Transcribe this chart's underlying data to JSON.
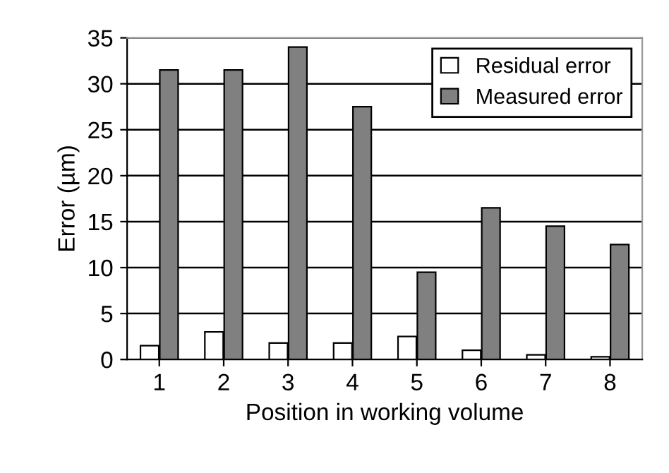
{
  "chart_data": {
    "type": "bar",
    "xlabel": "Position in working volume",
    "ylabel": "Error (µm)",
    "categories": [
      "1",
      "2",
      "3",
      "4",
      "5",
      "6",
      "7",
      "8"
    ],
    "series": [
      {
        "name": "Residual error",
        "color": "#ffffff",
        "values": [
          1.5,
          3,
          1.8,
          1.8,
          2.5,
          1,
          0.5,
          0.3
        ]
      },
      {
        "name": "Measured error",
        "color": "#808080",
        "values": [
          31.5,
          31.5,
          34,
          27.5,
          9.5,
          16.5,
          14.5,
          12.5
        ]
      }
    ],
    "ylim": [
      0,
      35
    ],
    "yticks": [
      0,
      5,
      10,
      15,
      20,
      25,
      30,
      35
    ],
    "grid": "y",
    "legend": "top right"
  }
}
